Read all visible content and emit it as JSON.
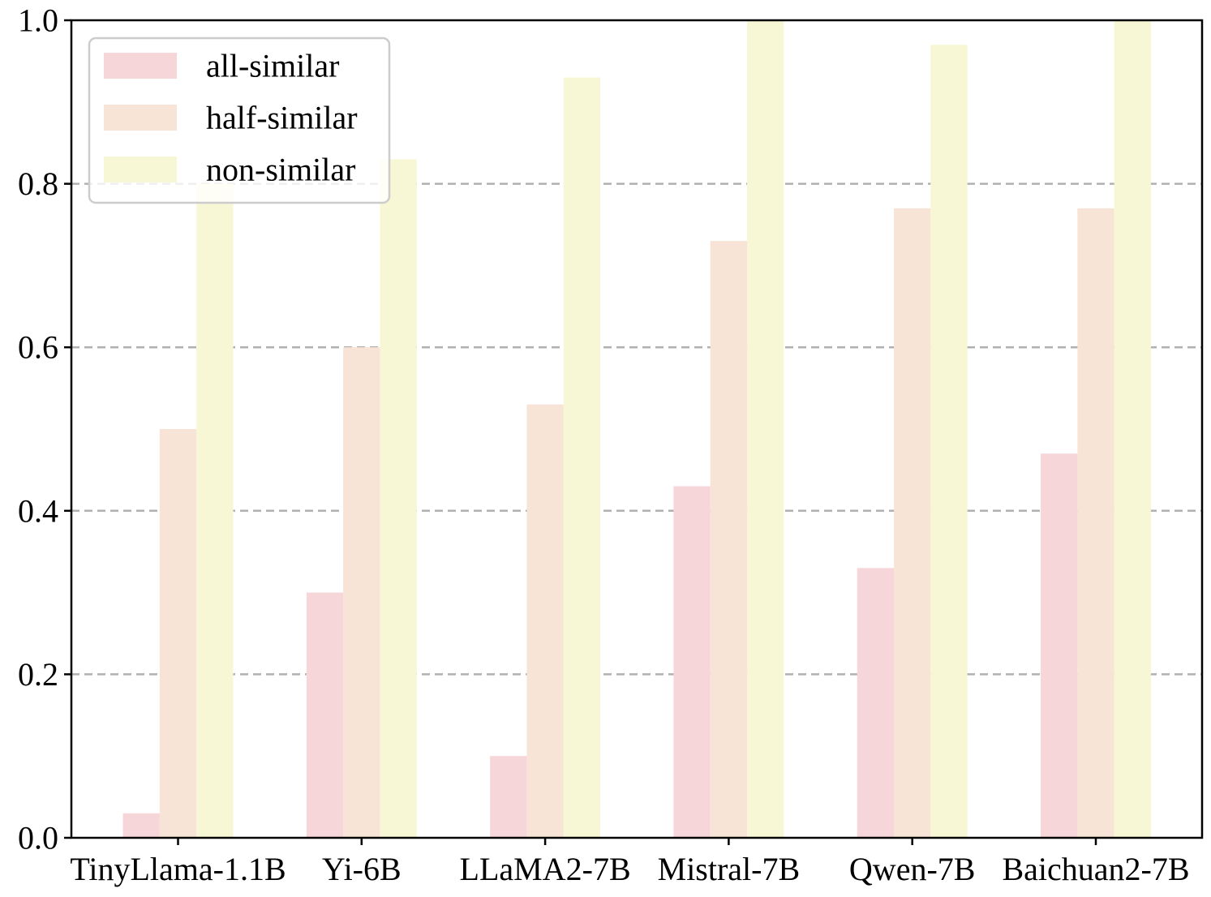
{
  "chart_data": {
    "type": "bar",
    "title": "",
    "xlabel": "",
    "ylabel": "",
    "categories": [
      "TinyLlama-1.1B",
      "Yi-6B",
      "LLaMA2-7B",
      "Mistral-7B",
      "Qwen-7B",
      "Baichuan2-7B"
    ],
    "series": [
      {
        "name": "all-similar",
        "color": "#f7d6d9",
        "values": [
          0.03,
          0.3,
          0.1,
          0.43,
          0.33,
          0.47
        ]
      },
      {
        "name": "half-similar",
        "color": "#f7e4d6",
        "values": [
          0.5,
          0.6,
          0.53,
          0.73,
          0.77,
          0.77
        ]
      },
      {
        "name": "non-similar",
        "color": "#f7f7d6",
        "values": [
          0.8,
          0.83,
          0.93,
          1.0,
          0.97,
          1.0
        ]
      }
    ],
    "ylim": [
      0,
      1.0
    ],
    "yticks": [
      "0.0",
      "0.2",
      "0.4",
      "0.6",
      "0.8",
      "1.0"
    ],
    "grid": "horizontal dashed",
    "legend_position": "top-left"
  }
}
